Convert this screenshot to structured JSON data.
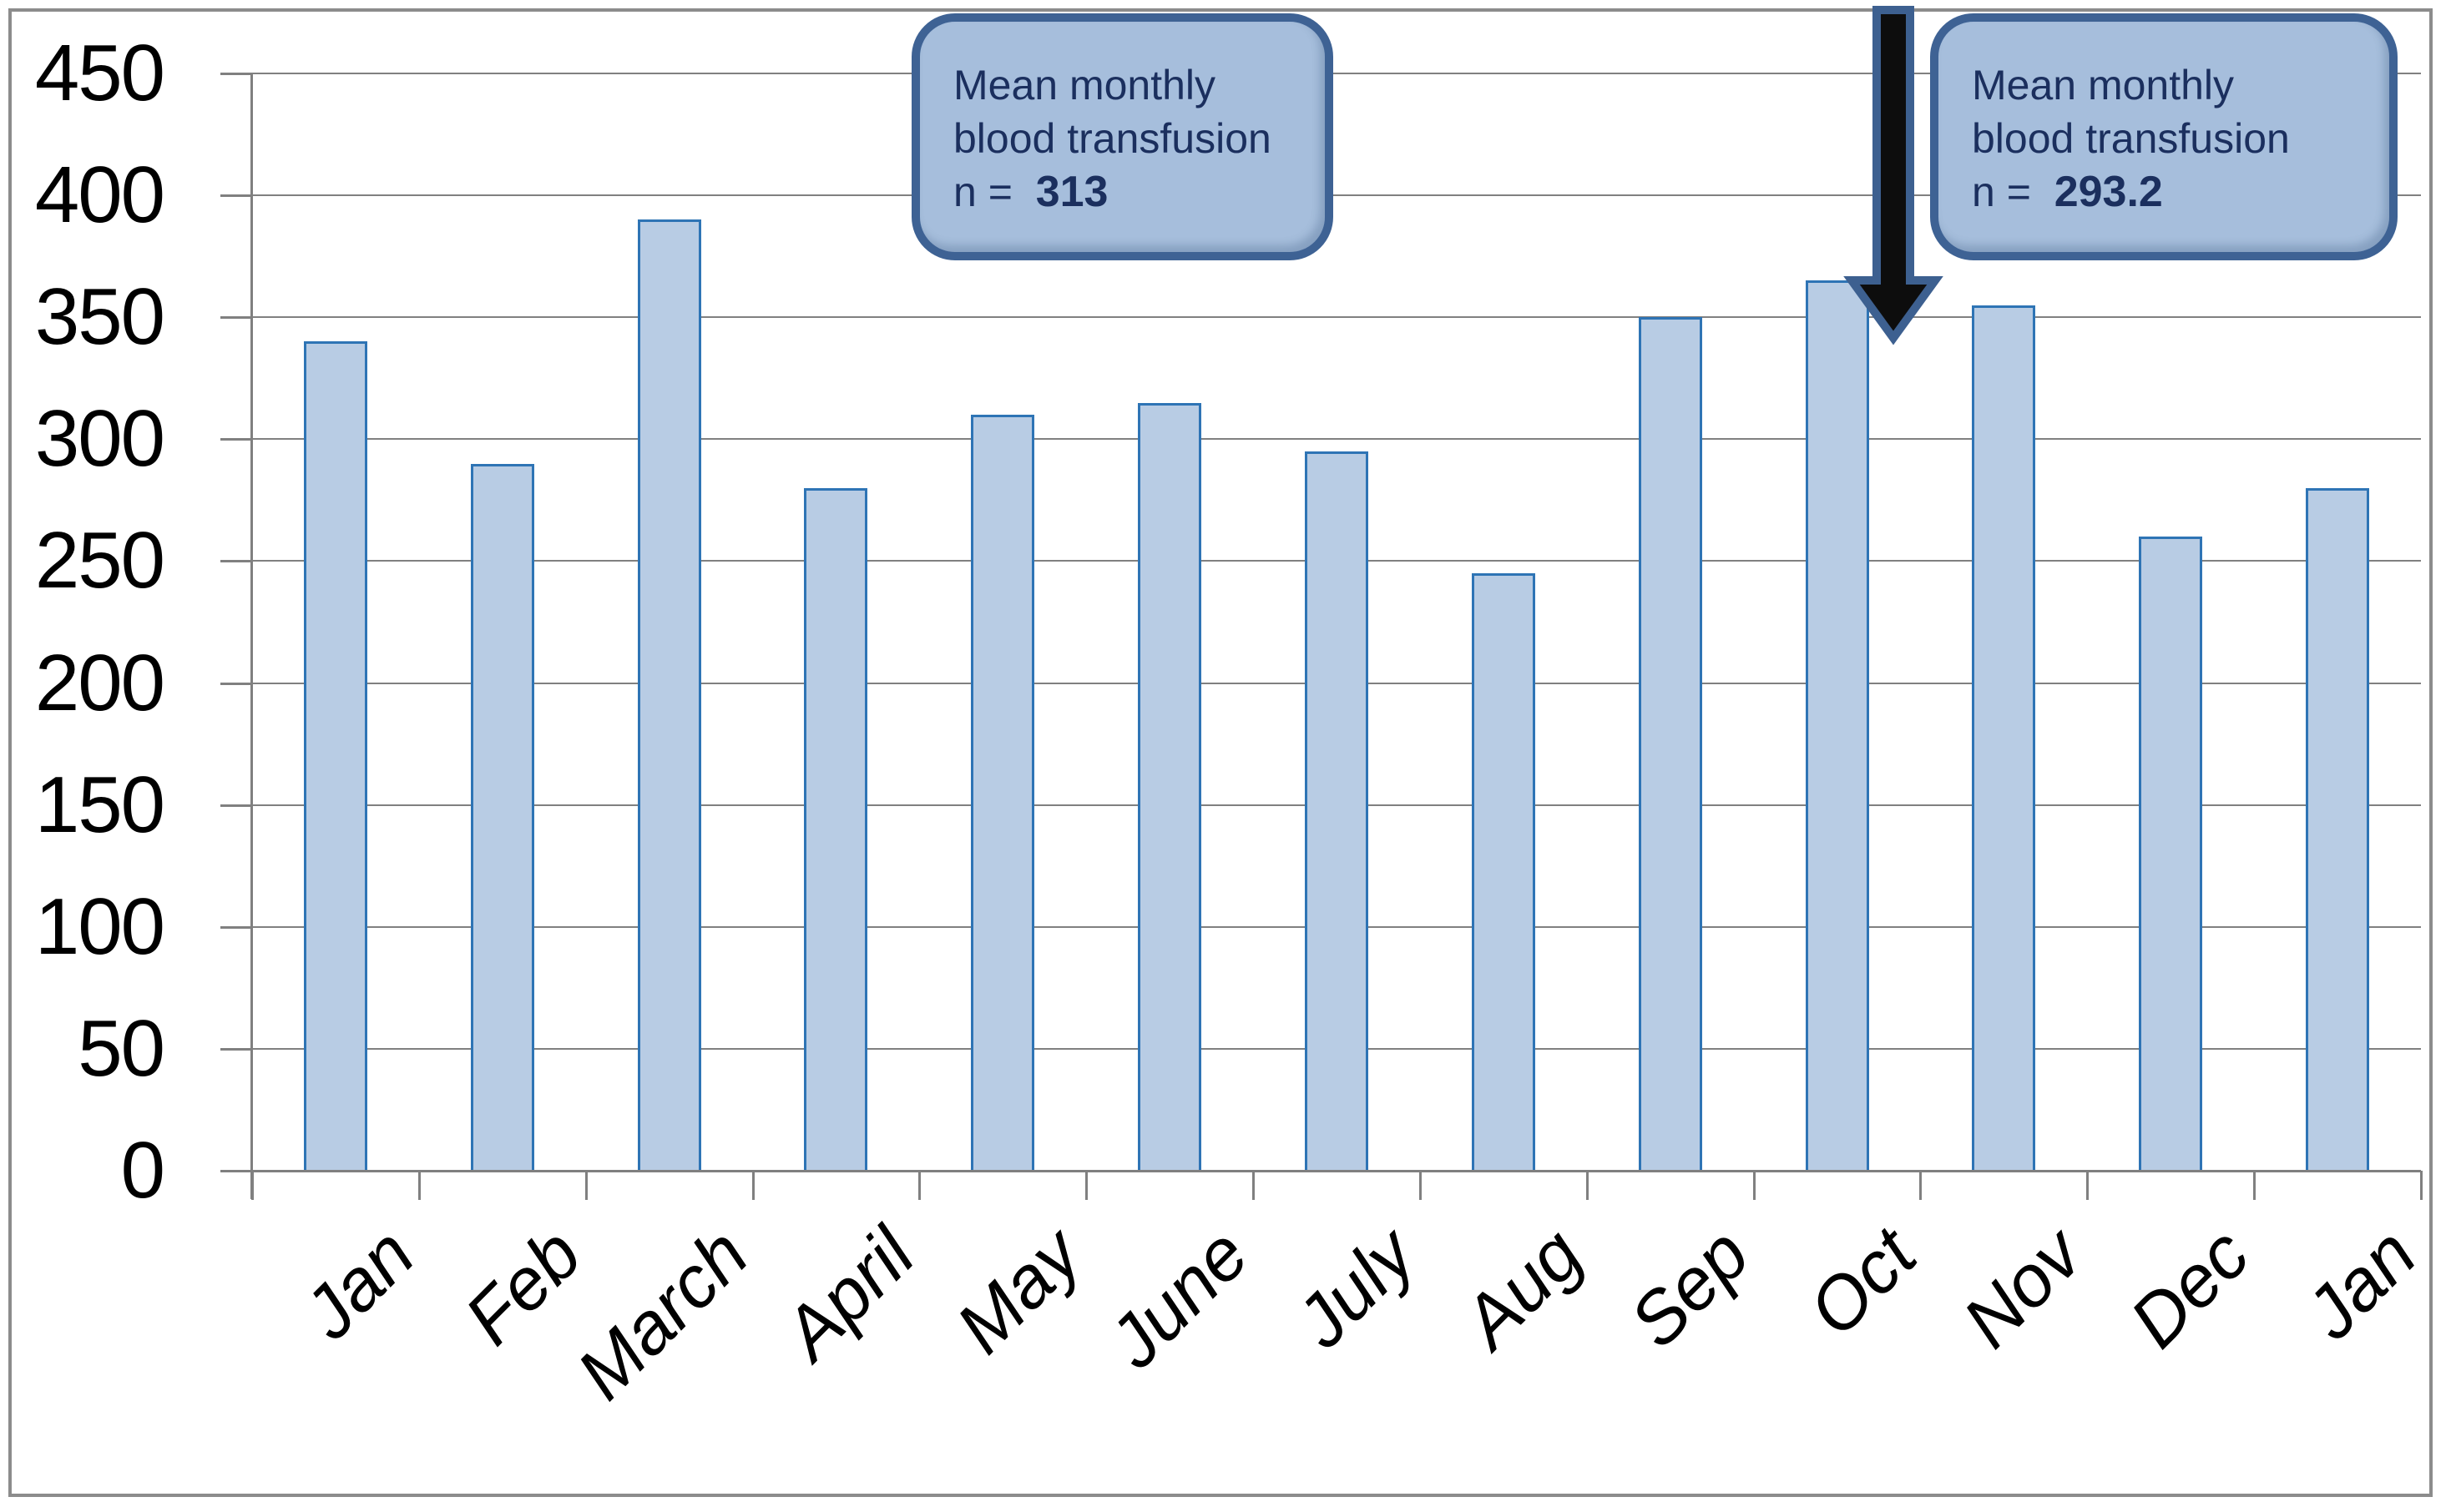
{
  "chart_data": {
    "type": "bar",
    "title": "",
    "xlabel": "",
    "ylabel": "",
    "categories": [
      "Jan",
      "Feb",
      "March",
      "April",
      "May",
      "June",
      "July",
      "Aug",
      "Sep",
      "Oct",
      "Nov",
      "Dec",
      "Jan"
    ],
    "values": [
      340,
      290,
      390,
      280,
      310,
      315,
      295,
      245,
      350,
      365,
      355,
      260,
      280
    ],
    "ylim": [
      0,
      450
    ],
    "ytick_step": 50,
    "ytick_labels": [
      "450",
      "400",
      "350",
      "300",
      "250",
      "200",
      "150",
      "100",
      "50",
      "0"
    ],
    "grid": true,
    "legend": "none",
    "bar_fill": "#b8cce4",
    "bar_border": "#2e74b5",
    "gridline_color": "#808080"
  },
  "callouts": [
    {
      "line1": "Mean monthly",
      "line2": "blood transfusion",
      "n_label": "n =",
      "n_value": "313"
    },
    {
      "line1": "Mean monthly",
      "line2": "blood transfusion",
      "n_label": "n =",
      "n_value": "293.2"
    }
  ],
  "annotations": {
    "arrow": "down-arrow pointing at gap between Oct and Nov bars"
  },
  "colors": {
    "callout_fill": "#a6bedc",
    "callout_border": "#3e6294",
    "callout_text": "#1b2f5e",
    "arrow_fill": "#0d0d0d",
    "arrow_border": "#3d6090",
    "frame_border": "#8c8c8c"
  }
}
